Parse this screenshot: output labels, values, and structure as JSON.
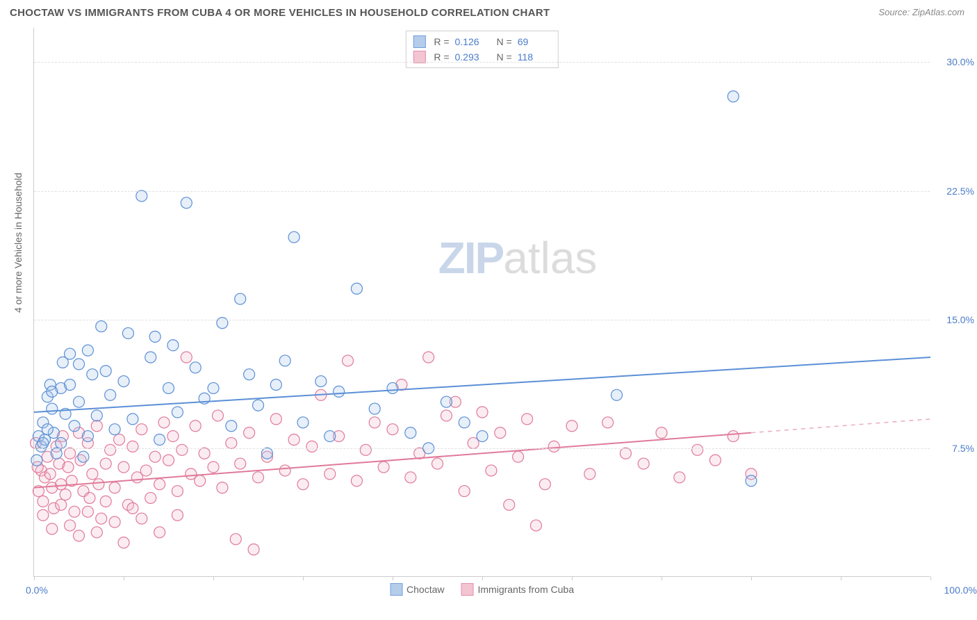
{
  "title": "CHOCTAW VS IMMIGRANTS FROM CUBA 4 OR MORE VEHICLES IN HOUSEHOLD CORRELATION CHART",
  "source": "Source: ZipAtlas.com",
  "yaxis_title": "4 or more Vehicles in Household",
  "watermark": {
    "zip": "ZIP",
    "atlas": "atlas"
  },
  "chart": {
    "type": "scatter",
    "xlim": [
      0,
      100
    ],
    "ylim": [
      0,
      32
    ],
    "xticks_percent": [
      0,
      10,
      20,
      30,
      40,
      50,
      60,
      70,
      80,
      90,
      100
    ],
    "xlabel_min": "0.0%",
    "xlabel_max": "100.0%",
    "yticks": [
      {
        "v": 7.5,
        "label": "7.5%"
      },
      {
        "v": 15.0,
        "label": "15.0%"
      },
      {
        "v": 22.5,
        "label": "22.5%"
      },
      {
        "v": 30.0,
        "label": "30.0%"
      }
    ],
    "grid_color": "#e0e0e0",
    "background_color": "#ffffff",
    "marker_radius": 8,
    "marker_stroke_width": 1.2,
    "marker_fill_opacity": 0.28,
    "line_width": 2
  },
  "series": {
    "choctaw": {
      "label": "Choctaw",
      "color_stroke": "#5b8fd6",
      "color_fill": "#a8c5e8",
      "R": "0.126",
      "N": "69",
      "trend": {
        "y_at_x0": 9.6,
        "y_at_x100": 12.8,
        "solid_until_x": 100
      },
      "points": [
        [
          0.5,
          8.2
        ],
        [
          0.8,
          7.6
        ],
        [
          1.0,
          9.0
        ],
        [
          1.2,
          8.0
        ],
        [
          1.5,
          10.5
        ],
        [
          1.8,
          11.2
        ],
        [
          2.0,
          9.8
        ],
        [
          2.2,
          8.4
        ],
        [
          2.5,
          7.2
        ],
        [
          3.0,
          11.0
        ],
        [
          3.2,
          12.5
        ],
        [
          3.5,
          9.5
        ],
        [
          4.0,
          11.2
        ],
        [
          4.5,
          8.8
        ],
        [
          5.0,
          10.2
        ],
        [
          5.5,
          7.0
        ],
        [
          6.0,
          13.2
        ],
        [
          6.5,
          11.8
        ],
        [
          7.0,
          9.4
        ],
        [
          7.5,
          14.6
        ],
        [
          8.0,
          12.0
        ],
        [
          8.5,
          10.6
        ],
        [
          9.0,
          8.6
        ],
        [
          10.0,
          11.4
        ],
        [
          10.5,
          14.2
        ],
        [
          11.0,
          9.2
        ],
        [
          12.0,
          22.2
        ],
        [
          13.0,
          12.8
        ],
        [
          13.5,
          14.0
        ],
        [
          14.0,
          8.0
        ],
        [
          15.0,
          11.0
        ],
        [
          15.5,
          13.5
        ],
        [
          16.0,
          9.6
        ],
        [
          17.0,
          21.8
        ],
        [
          18.0,
          12.2
        ],
        [
          19.0,
          10.4
        ],
        [
          20.0,
          11.0
        ],
        [
          21.0,
          14.8
        ],
        [
          22.0,
          8.8
        ],
        [
          23.0,
          16.2
        ],
        [
          24.0,
          11.8
        ],
        [
          25.0,
          10.0
        ],
        [
          26.0,
          7.2
        ],
        [
          27.0,
          11.2
        ],
        [
          28.0,
          12.6
        ],
        [
          29.0,
          19.8
        ],
        [
          30.0,
          9.0
        ],
        [
          32.0,
          11.4
        ],
        [
          33.0,
          8.2
        ],
        [
          34.0,
          10.8
        ],
        [
          36.0,
          16.8
        ],
        [
          38.0,
          9.8
        ],
        [
          40.0,
          11.0
        ],
        [
          42.0,
          8.4
        ],
        [
          44.0,
          7.5
        ],
        [
          46.0,
          10.2
        ],
        [
          48.0,
          9.0
        ],
        [
          50.0,
          8.2
        ],
        [
          65.0,
          10.6
        ],
        [
          78.0,
          28.0
        ],
        [
          80.0,
          5.6
        ],
        [
          1.0,
          7.8
        ],
        [
          1.5,
          8.6
        ],
        [
          2.0,
          10.8
        ],
        [
          3.0,
          7.8
        ],
        [
          4.0,
          13.0
        ],
        [
          5.0,
          12.4
        ],
        [
          6.0,
          8.2
        ],
        [
          0.3,
          6.8
        ]
      ]
    },
    "cuba": {
      "label": "Immigrants from Cuba",
      "color_stroke": "#e07a9a",
      "color_fill": "#f2bccb",
      "R": "0.293",
      "N": "118",
      "trend": {
        "y_at_x0": 5.2,
        "y_at_x100": 9.2,
        "solid_until_x": 80
      },
      "points": [
        [
          0.5,
          5.0
        ],
        [
          0.8,
          6.2
        ],
        [
          1.0,
          4.4
        ],
        [
          1.2,
          5.8
        ],
        [
          1.5,
          7.0
        ],
        [
          1.8,
          6.0
        ],
        [
          2.0,
          5.2
        ],
        [
          2.2,
          4.0
        ],
        [
          2.5,
          7.6
        ],
        [
          2.8,
          6.6
        ],
        [
          3.0,
          5.4
        ],
        [
          3.2,
          8.2
        ],
        [
          3.5,
          4.8
        ],
        [
          3.8,
          6.4
        ],
        [
          4.0,
          7.2
        ],
        [
          4.2,
          5.6
        ],
        [
          4.5,
          3.8
        ],
        [
          5.0,
          8.4
        ],
        [
          5.2,
          6.8
        ],
        [
          5.5,
          5.0
        ],
        [
          6.0,
          7.8
        ],
        [
          6.2,
          4.6
        ],
        [
          6.5,
          6.0
        ],
        [
          7.0,
          8.8
        ],
        [
          7.2,
          5.4
        ],
        [
          7.5,
          3.4
        ],
        [
          8.0,
          6.6
        ],
        [
          8.5,
          7.4
        ],
        [
          9.0,
          5.2
        ],
        [
          9.5,
          8.0
        ],
        [
          10.0,
          6.4
        ],
        [
          10.5,
          4.2
        ],
        [
          11.0,
          7.6
        ],
        [
          11.5,
          5.8
        ],
        [
          12.0,
          8.6
        ],
        [
          12.5,
          6.2
        ],
        [
          13.0,
          4.6
        ],
        [
          13.5,
          7.0
        ],
        [
          14.0,
          5.4
        ],
        [
          14.5,
          9.0
        ],
        [
          15.0,
          6.8
        ],
        [
          15.5,
          8.2
        ],
        [
          16.0,
          5.0
        ],
        [
          16.5,
          7.4
        ],
        [
          17.0,
          12.8
        ],
        [
          17.5,
          6.0
        ],
        [
          18.0,
          8.8
        ],
        [
          18.5,
          5.6
        ],
        [
          19.0,
          7.2
        ],
        [
          20.0,
          6.4
        ],
        [
          20.5,
          9.4
        ],
        [
          21.0,
          5.2
        ],
        [
          22.0,
          7.8
        ],
        [
          22.5,
          2.2
        ],
        [
          23.0,
          6.6
        ],
        [
          24.0,
          8.4
        ],
        [
          24.5,
          1.6
        ],
        [
          25.0,
          5.8
        ],
        [
          26.0,
          7.0
        ],
        [
          27.0,
          9.2
        ],
        [
          28.0,
          6.2
        ],
        [
          29.0,
          8.0
        ],
        [
          30.0,
          5.4
        ],
        [
          31.0,
          7.6
        ],
        [
          32.0,
          10.6
        ],
        [
          33.0,
          6.0
        ],
        [
          34.0,
          8.2
        ],
        [
          35.0,
          12.6
        ],
        [
          36.0,
          5.6
        ],
        [
          37.0,
          7.4
        ],
        [
          38.0,
          9.0
        ],
        [
          39.0,
          6.4
        ],
        [
          40.0,
          8.6
        ],
        [
          41.0,
          11.2
        ],
        [
          42.0,
          5.8
        ],
        [
          43.0,
          7.2
        ],
        [
          44.0,
          12.8
        ],
        [
          45.0,
          6.6
        ],
        [
          46.0,
          9.4
        ],
        [
          47.0,
          10.2
        ],
        [
          48.0,
          5.0
        ],
        [
          49.0,
          7.8
        ],
        [
          50.0,
          9.6
        ],
        [
          51.0,
          6.2
        ],
        [
          52.0,
          8.4
        ],
        [
          53.0,
          4.2
        ],
        [
          54.0,
          7.0
        ],
        [
          55.0,
          9.2
        ],
        [
          56.0,
          3.0
        ],
        [
          57.0,
          5.4
        ],
        [
          58.0,
          7.6
        ],
        [
          60.0,
          8.8
        ],
        [
          62.0,
          6.0
        ],
        [
          64.0,
          9.0
        ],
        [
          66.0,
          7.2
        ],
        [
          68.0,
          6.6
        ],
        [
          70.0,
          8.4
        ],
        [
          72.0,
          5.8
        ],
        [
          74.0,
          7.4
        ],
        [
          76.0,
          6.8
        ],
        [
          78.0,
          8.2
        ],
        [
          80.0,
          6.0
        ],
        [
          1.0,
          3.6
        ],
        [
          2.0,
          2.8
        ],
        [
          3.0,
          4.2
        ],
        [
          4.0,
          3.0
        ],
        [
          5.0,
          2.4
        ],
        [
          6.0,
          3.8
        ],
        [
          7.0,
          2.6
        ],
        [
          8.0,
          4.4
        ],
        [
          9.0,
          3.2
        ],
        [
          10.0,
          2.0
        ],
        [
          11.0,
          4.0
        ],
        [
          12.0,
          3.4
        ],
        [
          14.0,
          2.6
        ],
        [
          16.0,
          3.6
        ],
        [
          0.2,
          7.8
        ],
        [
          0.4,
          6.4
        ]
      ]
    }
  },
  "legend_top_labels": {
    "R": "R =",
    "N": "N ="
  },
  "legend_bottom": [
    "choctaw",
    "cuba"
  ]
}
